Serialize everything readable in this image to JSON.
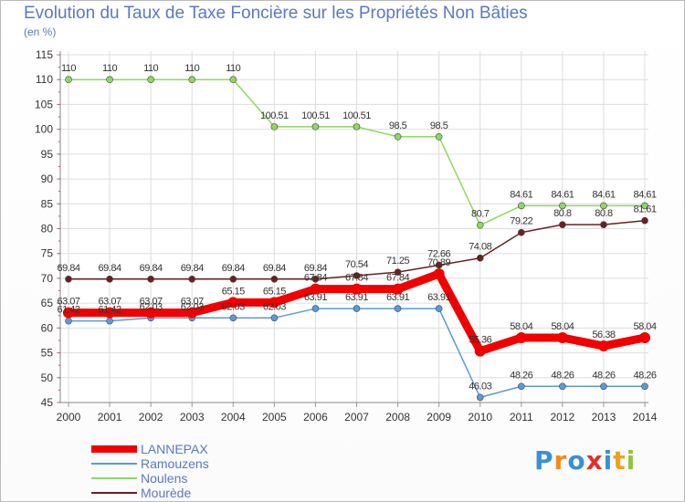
{
  "header": {
    "title": "Evolution du Taux de Taxe Foncière sur les Propriétés Non Bâties",
    "unit": "(en %)"
  },
  "logo": {
    "letters": [
      "P",
      "r",
      "o",
      "x",
      "i",
      "t",
      "i"
    ],
    "colors": [
      "#3a8fd8",
      "#f08a1c",
      "#3a8fd8",
      "#e0302a",
      "#3a8fd8",
      "#f0a020",
      "#8cc63f"
    ]
  },
  "chart_data": {
    "type": "line",
    "x": [
      "2000",
      "2001",
      "2002",
      "2003",
      "2004",
      "2005",
      "2006",
      "2007",
      "2008",
      "2009",
      "2010",
      "2011",
      "2012",
      "2013",
      "2014"
    ],
    "ylim": [
      45,
      115
    ],
    "yticks": [
      45,
      50,
      55,
      60,
      65,
      70,
      75,
      80,
      85,
      90,
      95,
      100,
      105,
      110,
      115
    ],
    "grid": true,
    "legend_position": "bottom-left",
    "series": [
      {
        "name": "LANNEPAX",
        "color": "#f00000",
        "values": [
          63.07,
          63.07,
          63.07,
          63.07,
          65.15,
          65.15,
          67.84,
          67.84,
          67.84,
          70.89,
          55.36,
          58.04,
          58.04,
          56.38,
          58.04
        ],
        "labels": [
          "63.07",
          "63.07",
          "63.07",
          "63.07",
          "65.15",
          "65.15",
          "67.84",
          "67.84",
          "67.84",
          "70.89",
          "55.36",
          "58.04",
          "58.04",
          "56.38",
          "58.04"
        ]
      },
      {
        "name": "Ramouzens",
        "color": "#5a9ad8",
        "values": [
          61.42,
          61.42,
          62.03,
          62.03,
          62.03,
          62.03,
          63.91,
          63.91,
          63.91,
          63.91,
          46.03,
          48.26,
          48.26,
          48.26,
          48.26
        ],
        "labels": [
          "61.42",
          "61.42",
          "62.03",
          "62.03",
          "62.03",
          "62.03",
          "63.91",
          "63.91",
          "63.91",
          "63.91",
          "46.03",
          "48.26",
          "48.26",
          "48.26",
          "48.26"
        ]
      },
      {
        "name": "Noulens",
        "color": "#8ed860",
        "values": [
          110,
          110,
          110,
          110,
          110,
          100.51,
          100.51,
          100.51,
          98.5,
          98.5,
          80.7,
          84.61,
          84.61,
          84.61,
          84.61
        ],
        "labels": [
          "110",
          "110",
          "110",
          "110",
          "110",
          "100.51",
          "100.51",
          "100.51",
          "98.5",
          "98.5",
          "80.7",
          "84.61",
          "84.61",
          "84.61",
          "84.61"
        ]
      },
      {
        "name": "Mourède",
        "color": "#6a2020",
        "values": [
          69.84,
          69.84,
          69.84,
          69.84,
          69.84,
          69.84,
          69.84,
          70.54,
          71.25,
          72.66,
          74.08,
          79.22,
          80.8,
          80.8,
          81.61
        ],
        "labels": [
          "69.84",
          "69.84",
          "69.84",
          "69.84",
          "69.84",
          "69.84",
          "69.84",
          "70.54",
          "71.25",
          "72.66",
          "74.08",
          "79.22",
          "80.8",
          "80.8",
          "81.61"
        ]
      }
    ]
  }
}
